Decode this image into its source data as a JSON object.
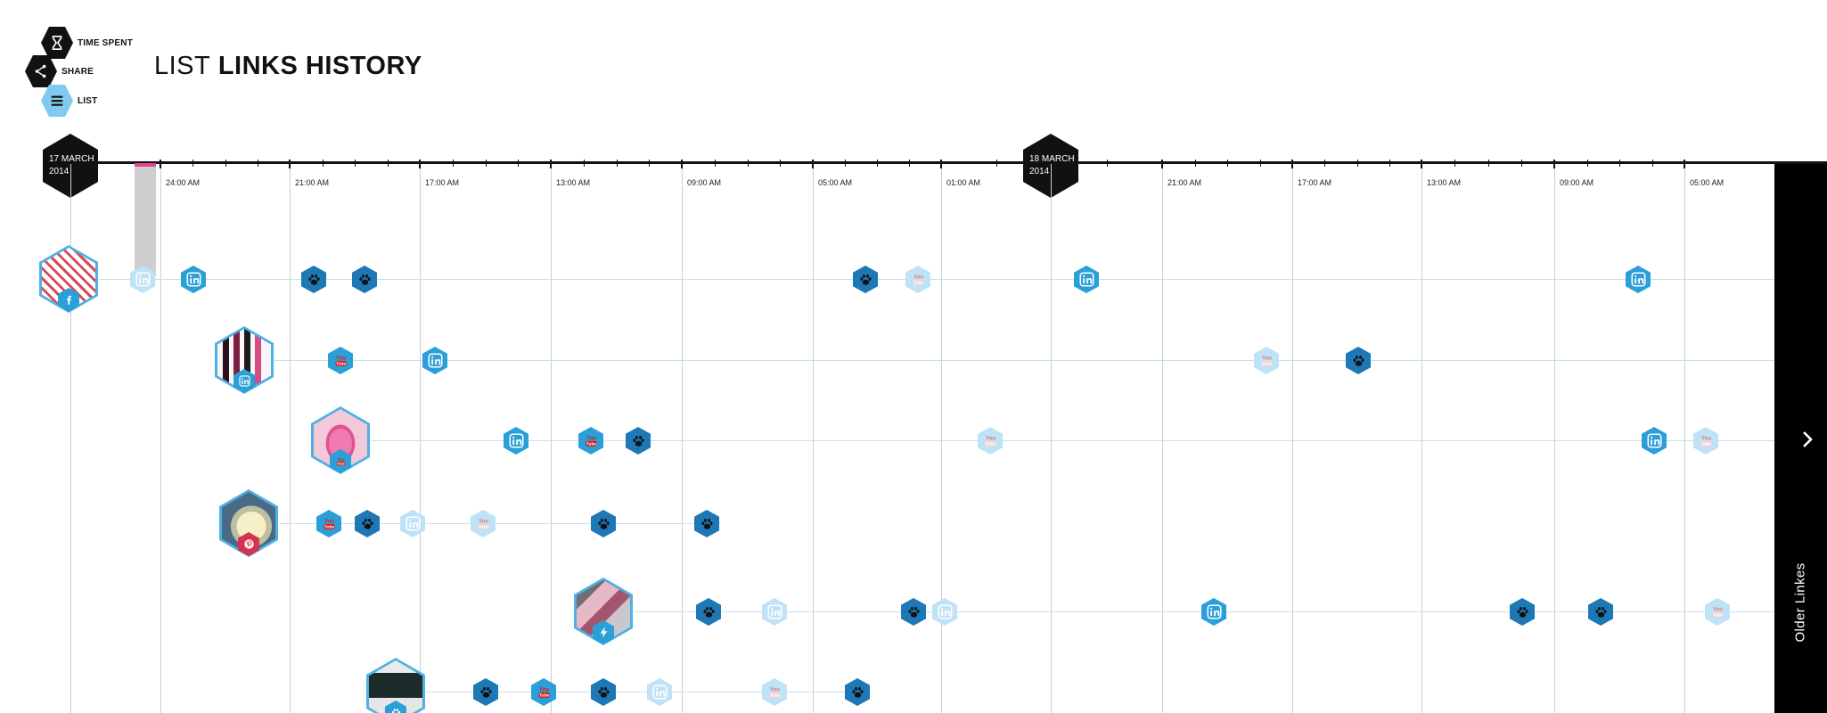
{
  "menu": {
    "items": [
      {
        "label": "TIME SPENT",
        "icon": "hourglass-icon",
        "active": false
      },
      {
        "label": "SHARE",
        "icon": "share-icon",
        "active": false
      },
      {
        "label": "LIST",
        "icon": "list-icon",
        "active": true
      }
    ]
  },
  "title": {
    "prefix": "LIST",
    "main": "LINKS HISTORY"
  },
  "timeline": {
    "dates": [
      {
        "day": "17 MARCH",
        "year": "2014"
      },
      {
        "day": "18 MARCH",
        "year": "2014"
      }
    ],
    "ticks": [
      "24:00 AM",
      "21:00 AM",
      "17:00 AM",
      "13:00 AM",
      "09:00 AM",
      "05:00 AM",
      "01:00 AM",
      "21:00 AM",
      "17:00 AM",
      "13:00 AM",
      "09:00 AM",
      "05:00 AM"
    ]
  },
  "older_links": {
    "label": "Older Linkes",
    "icon": "chevron-right-icon"
  },
  "rows": [
    {
      "avatar": "playing-cards-photo",
      "badge": "facebook-icon",
      "events": [
        {
          "type": "linkedin",
          "faded": true
        },
        {
          "type": "linkedin",
          "faded": false
        },
        {
          "type": "paw",
          "faded": false
        },
        {
          "type": "paw",
          "faded": false
        },
        {
          "type": "paw",
          "faded": false
        },
        {
          "type": "youtube",
          "faded": true
        },
        {
          "type": "linkedin",
          "faded": false
        },
        {
          "type": "linkedin",
          "faded": false
        }
      ]
    },
    {
      "avatar": "wine-bottles-photo",
      "badge": "linkedin-icon",
      "events": [
        {
          "type": "youtube",
          "faded": false
        },
        {
          "type": "linkedin",
          "faded": false
        },
        {
          "type": "youtube",
          "faded": true
        },
        {
          "type": "paw",
          "faded": false
        }
      ]
    },
    {
      "avatar": "pink-lips-photo",
      "badge": "youtube-icon",
      "events": [
        {
          "type": "linkedin",
          "faded": false
        },
        {
          "type": "youtube",
          "faded": false
        },
        {
          "type": "paw",
          "faded": false
        },
        {
          "type": "youtube",
          "faded": true
        },
        {
          "type": "linkedin",
          "faded": false
        },
        {
          "type": "youtube",
          "faded": true
        }
      ]
    },
    {
      "avatar": "white-dog-photo",
      "badge": "pinterest-icon",
      "events": [
        {
          "type": "youtube",
          "faded": false
        },
        {
          "type": "paw",
          "faded": false
        },
        {
          "type": "linkedin",
          "faded": true
        },
        {
          "type": "youtube",
          "faded": true
        },
        {
          "type": "paw",
          "faded": false
        },
        {
          "type": "paw",
          "faded": false
        }
      ]
    },
    {
      "avatar": "couple-photo",
      "badge": "lightning-icon",
      "events": [
        {
          "type": "paw",
          "faded": false
        },
        {
          "type": "linkedin",
          "faded": true
        },
        {
          "type": "paw",
          "faded": false
        },
        {
          "type": "linkedin",
          "faded": true
        },
        {
          "type": "linkedin",
          "faded": false
        },
        {
          "type": "paw",
          "faded": false
        },
        {
          "type": "paw",
          "faded": false
        },
        {
          "type": "youtube",
          "faded": true
        }
      ]
    },
    {
      "avatar": "fashion-photo",
      "badge": "paw-icon",
      "events": [
        {
          "type": "paw",
          "faded": false
        },
        {
          "type": "youtube",
          "faded": false
        },
        {
          "type": "paw",
          "faded": false
        },
        {
          "type": "linkedin",
          "faded": true
        },
        {
          "type": "youtube",
          "faded": true
        },
        {
          "type": "paw",
          "faded": false
        }
      ]
    }
  ],
  "colors": {
    "accent": "#2b9fd8",
    "faded": "#bfe3f6",
    "dark": "#111111",
    "grid": "#c9ced3"
  }
}
